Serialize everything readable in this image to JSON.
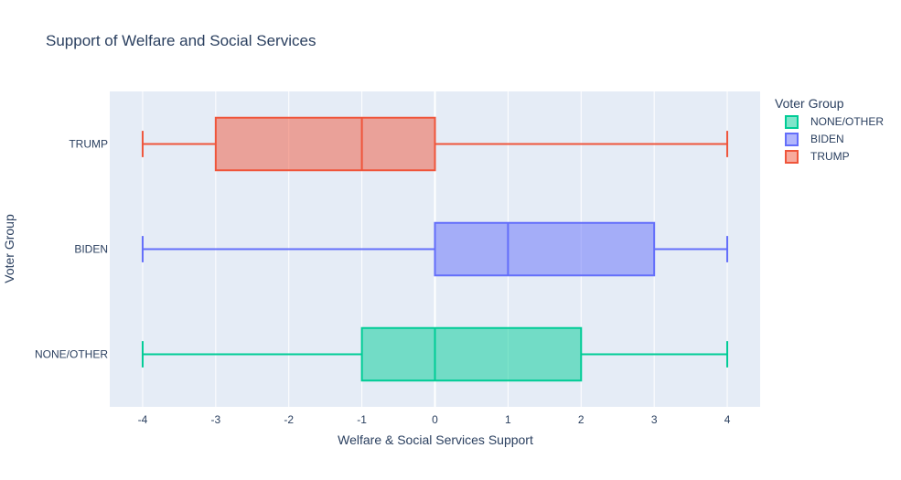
{
  "chart_data": {
    "type": "box",
    "orientation": "horizontal",
    "title": "Support of Welfare and Social Services",
    "xlabel": "Welfare & Social Services Support",
    "ylabel": "Voter Group",
    "xlim": [
      -4.45,
      4.45
    ],
    "xticks": [
      -4,
      -3,
      -2,
      -1,
      0,
      1,
      2,
      3,
      4
    ],
    "grid": true,
    "legend": {
      "title": "Voter Group",
      "placement": "right"
    },
    "categories": [
      "TRUMP",
      "BIDEN",
      "NONE/OTHER"
    ],
    "series": [
      {
        "name": "NONE/OTHER",
        "category": "NONE/OTHER",
        "color": "#00cc96",
        "min": -4,
        "q1": -1,
        "median": 0,
        "q3": 2,
        "max": 4
      },
      {
        "name": "BIDEN",
        "category": "BIDEN",
        "color": "#636efa",
        "min": -4,
        "q1": 0,
        "median": 1,
        "q3": 3,
        "max": 4
      },
      {
        "name": "TRUMP",
        "category": "TRUMP",
        "color": "#ef553b",
        "min": -4,
        "q1": -3,
        "median": -1,
        "q3": 0,
        "max": 4
      }
    ]
  }
}
